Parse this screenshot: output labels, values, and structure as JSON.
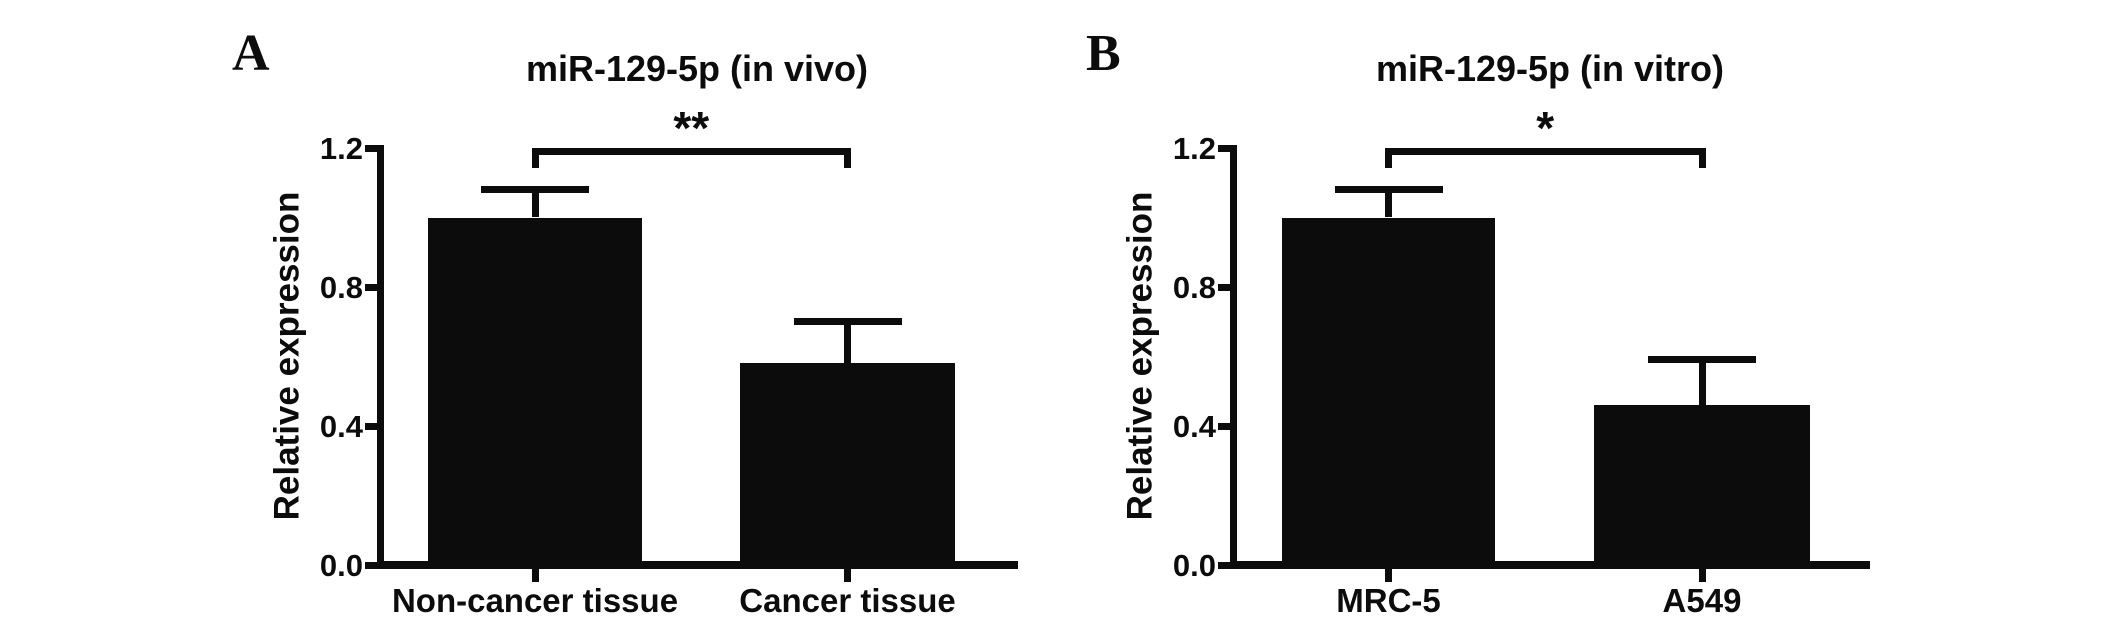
{
  "figure": {
    "background_color": "#ffffff",
    "ink_color": "#0c0c0c"
  },
  "chart_data": [
    {
      "type": "bar",
      "panel_letter": "A",
      "title": "miR-129-5p (in vivo)",
      "ylabel": "Relative expression",
      "xlabel": "",
      "categories": [
        "Non-cancer tissue",
        "Cancer tissue"
      ],
      "values": [
        1.0,
        0.58
      ],
      "errors_plus": [
        0.08,
        0.12
      ],
      "significance": {
        "label": "**",
        "from": "Non-cancer tissue",
        "to": "Cancer tissue"
      },
      "ylim": [
        0,
        1.2
      ],
      "yticks": [
        0.0,
        0.4,
        0.8,
        1.2
      ],
      "ytick_labels": [
        "0.0",
        "0.4",
        "0.8",
        "1.2"
      ],
      "bar_color": "#0c0c0c",
      "error_bar_style": "upper, capped",
      "grid": false,
      "legend": null
    },
    {
      "type": "bar",
      "panel_letter": "B",
      "title": "miR-129-5p (in vitro)",
      "ylabel": "Relative expression",
      "xlabel": "",
      "categories": [
        "MRC-5",
        "A549"
      ],
      "values": [
        1.0,
        0.46
      ],
      "errors_plus": [
        0.08,
        0.13
      ],
      "significance": {
        "label": "*",
        "from": "MRC-5",
        "to": "A549"
      },
      "ylim": [
        0,
        1.2
      ],
      "yticks": [
        0.0,
        0.4,
        0.8,
        1.2
      ],
      "ytick_labels": [
        "0.0",
        "0.4",
        "0.8",
        "1.2"
      ],
      "bar_color": "#0c0c0c",
      "error_bar_style": "upper, capped",
      "grid": false,
      "legend": null
    }
  ]
}
